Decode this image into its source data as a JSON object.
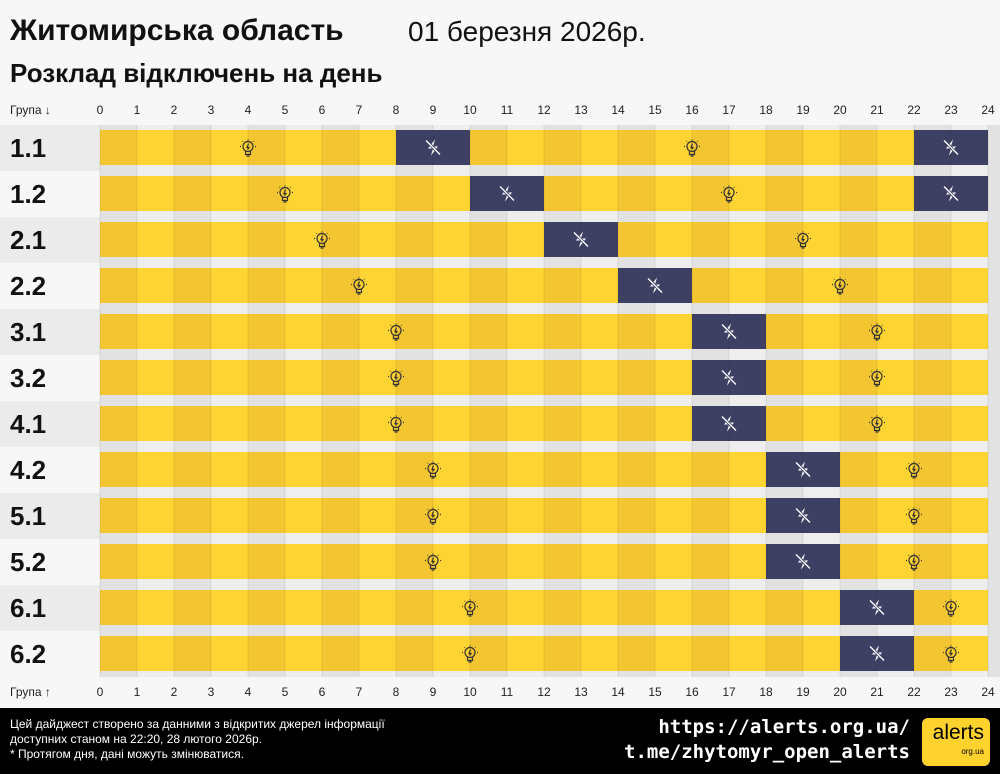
{
  "header": {
    "title": "Житомирська область",
    "date": "01 березня 2026р.",
    "subtitle": "Розклад відключень на день"
  },
  "axis": {
    "top_label": "Група ↓",
    "bottom_label": "Група ↑"
  },
  "chart_data": {
    "type": "timeline",
    "xlim": [
      0,
      24
    ],
    "ticks": [
      0,
      1,
      2,
      3,
      4,
      5,
      6,
      7,
      8,
      9,
      10,
      11,
      12,
      13,
      14,
      15,
      16,
      17,
      18,
      19,
      20,
      21,
      22,
      23,
      24
    ],
    "colors": {
      "power_on": "#fdd432",
      "power_on_alt": "#f2c531",
      "power_off": "#3e4063"
    },
    "groups": [
      {
        "name": "1.1",
        "off": [
          [
            8,
            10
          ],
          [
            22,
            24
          ]
        ]
      },
      {
        "name": "1.2",
        "off": [
          [
            10,
            12
          ],
          [
            22,
            24
          ]
        ]
      },
      {
        "name": "2.1",
        "off": [
          [
            12,
            14
          ]
        ]
      },
      {
        "name": "2.2",
        "off": [
          [
            14,
            16
          ]
        ]
      },
      {
        "name": "3.1",
        "off": [
          [
            16,
            18
          ]
        ]
      },
      {
        "name": "3.2",
        "off": [
          [
            16,
            18
          ]
        ]
      },
      {
        "name": "4.1",
        "off": [
          [
            16,
            18
          ]
        ]
      },
      {
        "name": "4.2",
        "off": [
          [
            18,
            20
          ]
        ]
      },
      {
        "name": "5.1",
        "off": [
          [
            18,
            20
          ]
        ]
      },
      {
        "name": "5.2",
        "off": [
          [
            18,
            20
          ]
        ]
      },
      {
        "name": "6.1",
        "off": [
          [
            20,
            22
          ]
        ]
      },
      {
        "name": "6.2",
        "off": [
          [
            20,
            22
          ]
        ]
      }
    ],
    "icons": {
      "on": "lightbulb-icon",
      "off": "no-power-icon"
    }
  },
  "footer": {
    "line1": "Цей дайджест створено за данними з відкритих джерел інформації",
    "line2": "доступних станом на 22:20, 28 лютого 2026р.",
    "line3": "* Протягом дня, дані можуть змінюватися.",
    "url": "https://alerts.org.ua/",
    "telegram": "t.me/zhytomyr_open_alerts",
    "logo_text": "alerts",
    "logo_sub": "org.ua"
  }
}
